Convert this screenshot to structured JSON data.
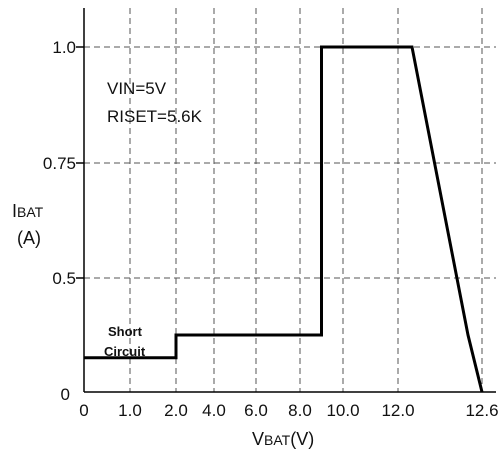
{
  "chart_data": {
    "type": "line",
    "x_tick_labels": [
      "0",
      "1.0",
      "2.0",
      "4.0",
      "6.0",
      "8.0",
      "10.0",
      "12.0",
      "12.6"
    ],
    "y_tick_labels": [
      "0",
      "0.5",
      "0.75",
      "1.0"
    ],
    "xlabel": {
      "main": "V",
      "sub": "BAT",
      "unit": "(V)"
    },
    "ylabel": {
      "main": "I",
      "sub": "BAT",
      "unit": "(A)"
    },
    "annotations": {
      "vin": "VIN=5V",
      "riset": "RISET=5.6K",
      "short_line1": "Short",
      "short_line2": "Circuit"
    },
    "series": [
      {
        "points": [
          [
            0,
            0.15
          ],
          [
            2.0,
            0.15
          ],
          [
            2.0,
            0.25
          ],
          [
            9.0,
            0.25
          ],
          [
            9.0,
            1.0
          ],
          [
            12.1,
            1.0
          ],
          [
            12.5,
            0.25
          ],
          [
            12.6,
            0
          ]
        ]
      }
    ],
    "grid": true,
    "line_color": "#000000"
  }
}
